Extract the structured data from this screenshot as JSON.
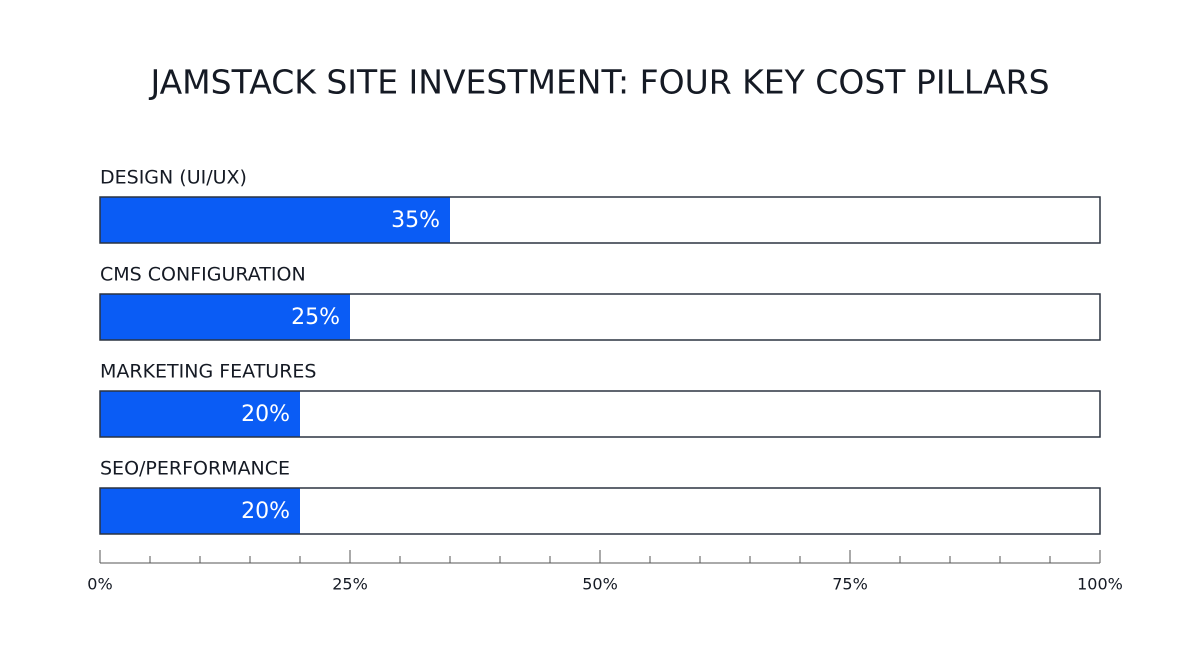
{
  "chart_data": {
    "type": "hbar",
    "title": "JAMSTACK SITE INVESTMENT: FOUR KEY COST PILLARS",
    "categories": [
      "DESIGN (UI/UX)",
      "CMS CONFIGURATION",
      "MARKETING FEATURES",
      "SEO/PERFORMANCE"
    ],
    "values": [
      35,
      25,
      20,
      20
    ],
    "value_labels": [
      "35%",
      "25%",
      "20%",
      "20%"
    ],
    "color": "#0a5cf5",
    "xlim": [
      0,
      100
    ],
    "xticks": [
      {
        "value": 0,
        "label": "0%"
      },
      {
        "value": 25,
        "label": "25%"
      },
      {
        "value": 50,
        "label": "50%"
      },
      {
        "value": 75,
        "label": "75%"
      },
      {
        "value": 100,
        "label": "100%"
      }
    ],
    "xminorticks": [
      5,
      10,
      15,
      20,
      30,
      35,
      40,
      45,
      55,
      60,
      65,
      70,
      80,
      85,
      90,
      95
    ]
  }
}
